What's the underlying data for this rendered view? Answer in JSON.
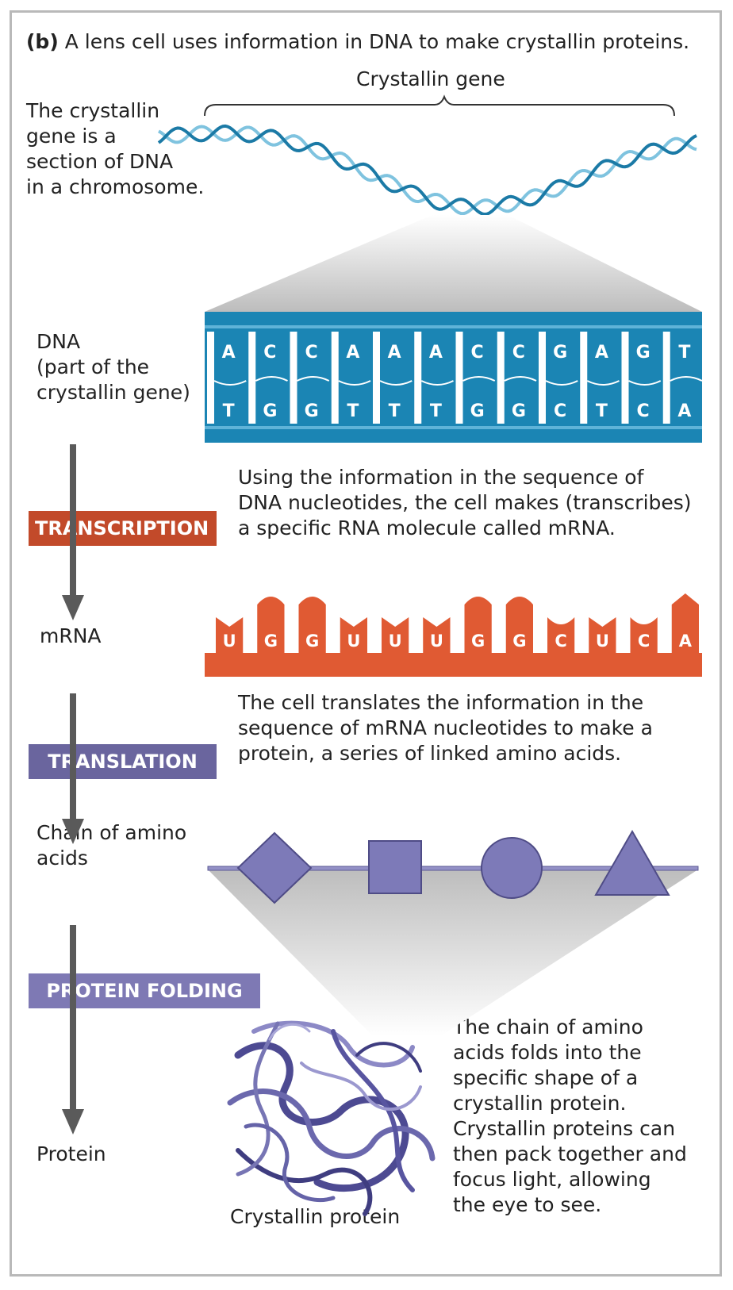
{
  "heading": {
    "label": "(b)",
    "text": "A lens cell uses information in DNA to make crystallin proteins."
  },
  "gene_label": "Crystallin gene",
  "gene_note": [
    "The crystallin",
    "gene is a",
    "section of DNA",
    "in a chromosome."
  ],
  "dna": {
    "label": [
      "DNA",
      "(part of the",
      "crystallin gene)"
    ],
    "top_strand": [
      "A",
      "C",
      "C",
      "A",
      "A",
      "A",
      "C",
      "C",
      "G",
      "A",
      "G",
      "T"
    ],
    "bottom_strand": [
      "T",
      "G",
      "G",
      "T",
      "T",
      "T",
      "G",
      "G",
      "C",
      "T",
      "C",
      "A"
    ]
  },
  "transcription": {
    "badge": "TRANSCRIPTION",
    "description": [
      "Using the information in the sequence of",
      "DNA nucleotides, the cell makes (transcribes)",
      "a specific RNA molecule called mRNA."
    ]
  },
  "mrna": {
    "label": "mRNA",
    "bases": [
      "U",
      "G",
      "G",
      "U",
      "U",
      "U",
      "G",
      "G",
      "C",
      "U",
      "C",
      "A"
    ]
  },
  "translation": {
    "badge": "TRANSLATION",
    "description": [
      "The cell translates the information in the",
      "sequence of mRNA nucleotides to make a",
      "protein, a series of linked amino acids."
    ]
  },
  "amino_chain": {
    "label": [
      "Chain of amino",
      "acids"
    ],
    "shapes": [
      "diamond",
      "square",
      "circle",
      "triangle"
    ]
  },
  "folding": {
    "badge": "PROTEIN FOLDING",
    "description": [
      "The chain of amino",
      "acids folds into the",
      "specific shape of a",
      "crystallin protein.",
      "Crystallin proteins can",
      "then pack together and",
      "focus light, allowing",
      "the eye to see."
    ]
  },
  "protein": {
    "label": "Protein",
    "caption": "Crystallin protein"
  },
  "colors": {
    "dna_blue": "#1b85b4",
    "mrna_orange": "#e05a33",
    "transcription_badge": "#c24a2a",
    "translation_badge": "#6a659e",
    "folding_badge": "#7e79b4",
    "amino_shape": "#7d7ab8",
    "arrow_gray": "#5a5a5a"
  }
}
